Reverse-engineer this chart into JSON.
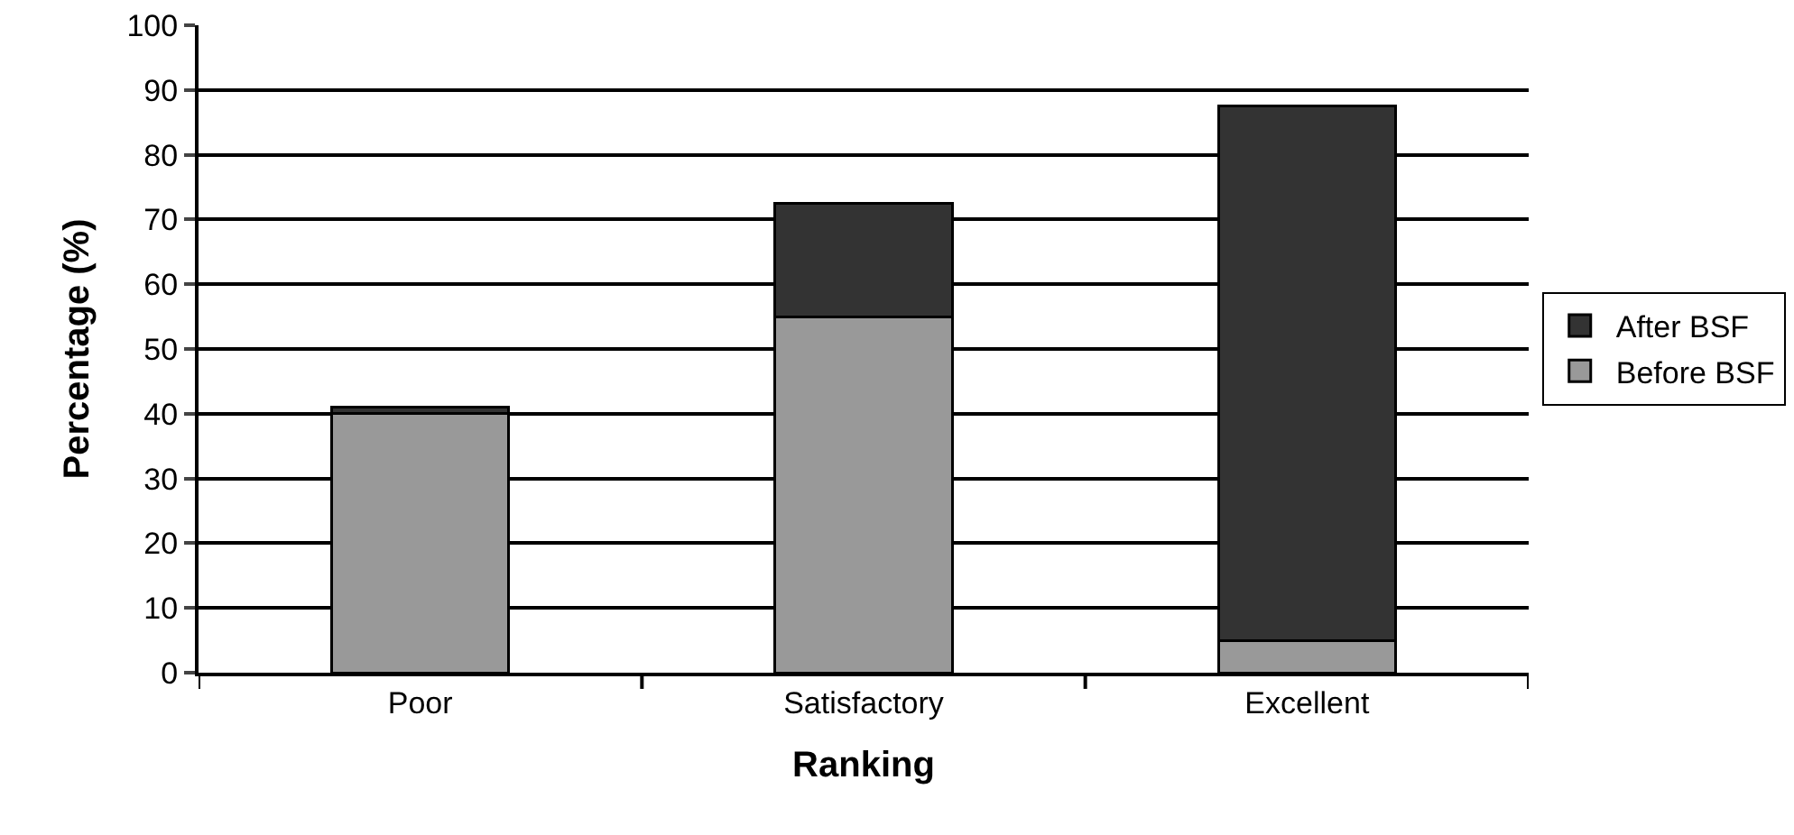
{
  "chart_data": {
    "type": "bar",
    "stacked": true,
    "xlabel": "Ranking",
    "ylabel": "Percentage (%)",
    "categories": [
      "Poor",
      "Satisfactory",
      "Excellent"
    ],
    "series": [
      {
        "name": "Before BSF",
        "color": "#999999",
        "values": [
          40,
          55,
          5
        ]
      },
      {
        "name": "After BSF",
        "color": "#333333",
        "values": [
          1,
          17.5,
          82.5
        ]
      }
    ],
    "ylim": [
      0,
      100
    ],
    "yticks": [
      0,
      10,
      20,
      30,
      40,
      50,
      60,
      70,
      80,
      90,
      100
    ],
    "grid": "y",
    "legend": "right"
  }
}
